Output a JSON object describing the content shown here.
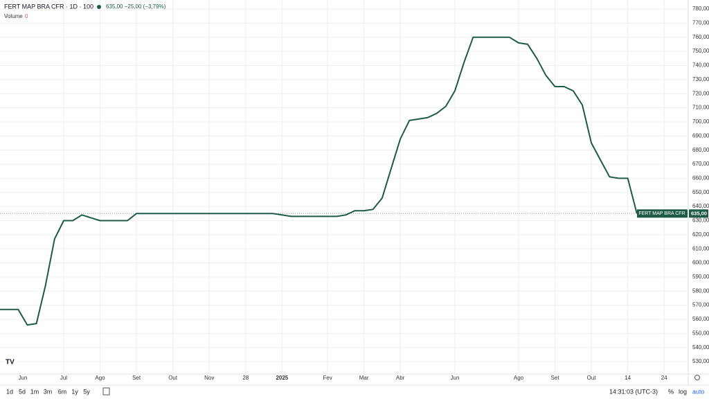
{
  "header": {
    "symbol": "FERT MAP BRA CFR · 1D · 100",
    "quote": "635,00 −25,00 (−3,79%)",
    "volume_label": "Volume",
    "volume_value": "0"
  },
  "chart_data": {
    "type": "line",
    "categories": [
      null,
      null,
      null,
      null,
      null,
      null,
      null,
      "Jul",
      null,
      null,
      null,
      "Ago",
      null,
      null,
      null,
      "Set",
      null,
      null,
      null,
      "Out",
      null,
      null,
      null,
      "Nov",
      null,
      null,
      null,
      "28",
      null,
      null,
      null,
      "2025",
      null,
      null,
      null,
      null,
      "Fev",
      null,
      null,
      null,
      "Mar",
      null,
      null,
      null,
      "Abr",
      null,
      null,
      null,
      null,
      null,
      "Jun",
      null,
      null,
      null,
      null,
      null,
      null,
      "Ago",
      null,
      null,
      null,
      "Set",
      null,
      null,
      null,
      "Out",
      null,
      null,
      null,
      "14",
      null,
      null,
      null,
      "24"
    ],
    "first_label": "Jun",
    "series": [
      {
        "name": "FERT MAP BRA CFR",
        "color": "#1f5a46",
        "values": [
          567,
          567,
          567,
          556,
          557,
          584,
          617,
          630,
          630,
          634,
          632,
          630,
          630,
          630,
          630,
          635,
          635,
          635,
          635,
          635,
          635,
          635,
          635,
          635,
          635,
          635,
          635,
          635,
          635,
          635,
          635,
          634,
          633,
          633,
          633,
          633,
          633,
          633,
          634,
          637,
          637,
          638,
          646,
          667,
          688,
          701,
          702,
          703,
          706,
          711,
          722,
          742,
          760,
          760,
          760,
          760,
          760,
          756,
          755,
          745,
          733,
          725,
          725,
          722,
          712,
          685,
          673,
          661,
          660,
          660,
          635,
          null,
          null,
          null
        ],
        "value_labels": [
          null,
          null,
          null,
          null,
          null,
          null,
          null,
          null,
          null,
          null,
          null,
          null,
          null,
          null,
          null,
          null,
          null,
          null,
          null,
          null,
          null,
          null,
          null,
          null,
          null,
          null,
          null,
          null,
          null,
          null,
          null,
          null,
          null,
          null,
          null,
          null,
          null,
          null,
          null,
          null,
          null,
          null,
          null,
          null,
          null,
          null,
          null,
          null,
          null,
          null,
          null,
          null,
          null,
          null,
          null,
          null,
          null,
          null,
          null,
          null,
          null,
          null,
          null,
          null,
          null,
          null,
          null,
          null,
          null,
          null,
          "635,00",
          null,
          null,
          null
        ]
      }
    ],
    "ylim": [
      521.2,
      786.4
    ],
    "yticks": [
      {
        "value": 530,
        "label": "530,00"
      },
      {
        "value": 540,
        "label": "540,00"
      },
      {
        "value": 550,
        "label": "550,00"
      },
      {
        "value": 560,
        "label": "560,00"
      },
      {
        "value": 570,
        "label": "570,00"
      },
      {
        "value": 580,
        "label": "580,00"
      },
      {
        "value": 590,
        "label": "590,00"
      },
      {
        "value": 600,
        "label": "600,00"
      },
      {
        "value": 610,
        "label": "610,00"
      },
      {
        "value": 620,
        "label": "620,00"
      },
      {
        "value": 630,
        "label": "630,00"
      },
      {
        "value": 640,
        "label": "640,00"
      },
      {
        "value": 650,
        "label": "650,00"
      },
      {
        "value": 660,
        "label": "660,00"
      },
      {
        "value": 670,
        "label": "670,00"
      },
      {
        "value": 680,
        "label": "680,00"
      },
      {
        "value": 690,
        "label": "690,00"
      },
      {
        "value": 700,
        "label": "700,00"
      },
      {
        "value": 710,
        "label": "710,00"
      },
      {
        "value": 720,
        "label": "720,00"
      },
      {
        "value": 730,
        "label": "730,00"
      },
      {
        "value": 740,
        "label": "740,00"
      },
      {
        "value": 750,
        "label": "750,00"
      },
      {
        "value": 760,
        "label": "760,00"
      },
      {
        "value": 770,
        "label": "770,00"
      },
      {
        "value": 780,
        "label": "780,00"
      }
    ],
    "grid": true
  },
  "toolbar": {
    "ranges": [
      "1d",
      "5d",
      "1m",
      "3m",
      "6m",
      "1y",
      "5y"
    ],
    "clock": "14:31:03 (UTC-3)",
    "percent": "%",
    "log": "log",
    "auto": "auto"
  }
}
